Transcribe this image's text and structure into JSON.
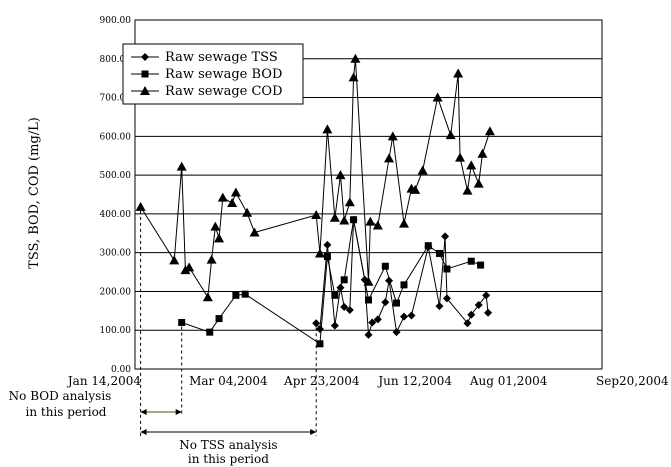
{
  "chart_data": {
    "type": "line",
    "ylabel": "TSS, BOD, COD (mg/L)",
    "ylim": [
      0,
      900
    ],
    "yticks": [
      "0.00",
      "100.00",
      "200.00",
      "300.00",
      "400.00",
      "500.00",
      "600.00",
      "700.00",
      "800.00",
      "900.00"
    ],
    "xlim": [
      "2004-01-14",
      "2004-09-20"
    ],
    "xticks": [
      {
        "date": "2004-01-14",
        "label": "Jan 14,2004"
      },
      {
        "date": "2004-03-04",
        "label": "Mar 04,2004"
      },
      {
        "date": "2004-04-23",
        "label": "Apr 23,2004"
      },
      {
        "date": "2004-06-12",
        "label": "Jun 12,2004"
      },
      {
        "date": "2004-08-01",
        "label": "Aug 01,2004"
      },
      {
        "date": "2004-09-20",
        "label": "Sep20,2004"
      }
    ],
    "grid": "horizontal",
    "legend_position": "top-left",
    "series": [
      {
        "name": "Raw sewage TSS",
        "marker": "diamond",
        "points": [
          [
            "2004-04-20",
            118
          ],
          [
            "2004-04-22",
            103
          ],
          [
            "2004-04-26",
            320
          ],
          [
            "2004-04-30",
            112
          ],
          [
            "2004-05-03",
            210
          ],
          [
            "2004-05-05",
            160
          ],
          [
            "2004-05-08",
            152
          ],
          [
            "2004-05-10",
            385
          ],
          [
            "2004-05-16",
            230
          ],
          [
            "2004-05-18",
            88
          ],
          [
            "2004-05-20",
            120
          ],
          [
            "2004-05-23",
            128
          ],
          [
            "2004-05-27",
            172
          ],
          [
            "2004-05-29",
            228
          ],
          [
            "2004-06-02",
            95
          ],
          [
            "2004-06-06",
            135
          ],
          [
            "2004-06-10",
            138
          ],
          [
            "2004-06-19",
            315
          ],
          [
            "2004-06-25",
            162
          ],
          [
            "2004-06-28",
            342
          ],
          [
            "2004-06-29",
            182
          ],
          [
            "2004-07-10",
            118
          ],
          [
            "2004-07-12",
            140
          ],
          [
            "2004-07-16",
            165
          ],
          [
            "2004-07-20",
            190
          ],
          [
            "2004-07-21",
            145
          ]
        ]
      },
      {
        "name": "Raw sewage BOD",
        "marker": "square",
        "points": [
          [
            "2004-02-08",
            120
          ],
          [
            "2004-02-23",
            95
          ],
          [
            "2004-02-28",
            130
          ],
          [
            "2004-03-08",
            190
          ],
          [
            "2004-03-13",
            193
          ],
          [
            "2004-04-22",
            65
          ],
          [
            "2004-04-26",
            290
          ],
          [
            "2004-04-30",
            190
          ],
          [
            "2004-05-05",
            230
          ],
          [
            "2004-05-10",
            385
          ],
          [
            "2004-05-18",
            178
          ],
          [
            "2004-05-27",
            265
          ],
          [
            "2004-06-02",
            170
          ],
          [
            "2004-06-06",
            217
          ],
          [
            "2004-06-19",
            318
          ],
          [
            "2004-06-25",
            298
          ],
          [
            "2004-06-29",
            258
          ],
          [
            "2004-07-12",
            278
          ],
          [
            "2004-07-17",
            268
          ]
        ]
      },
      {
        "name": "Raw sewage COD",
        "marker": "triangle",
        "points": [
          [
            "2004-01-17",
            418
          ],
          [
            "2004-02-04",
            280
          ],
          [
            "2004-02-08",
            522
          ],
          [
            "2004-02-10",
            255
          ],
          [
            "2004-02-12",
            262
          ],
          [
            "2004-02-22",
            185
          ],
          [
            "2004-02-24",
            282
          ],
          [
            "2004-02-26",
            367
          ],
          [
            "2004-02-28",
            337
          ],
          [
            "2004-03-01",
            442
          ],
          [
            "2004-03-06",
            428
          ],
          [
            "2004-03-08",
            455
          ],
          [
            "2004-03-14",
            403
          ],
          [
            "2004-03-18",
            352
          ],
          [
            "2004-04-20",
            397
          ],
          [
            "2004-04-22",
            298
          ],
          [
            "2004-04-26",
            618
          ],
          [
            "2004-04-30",
            390
          ],
          [
            "2004-05-03",
            500
          ],
          [
            "2004-05-05",
            383
          ],
          [
            "2004-05-08",
            430
          ],
          [
            "2004-05-10",
            752
          ],
          [
            "2004-05-11",
            800
          ],
          [
            "2004-05-18",
            225
          ],
          [
            "2004-05-19",
            380
          ],
          [
            "2004-05-23",
            370
          ],
          [
            "2004-05-29",
            543
          ],
          [
            "2004-05-31",
            600
          ],
          [
            "2004-06-06",
            375
          ],
          [
            "2004-06-10",
            465
          ],
          [
            "2004-06-12",
            462
          ],
          [
            "2004-06-16",
            512
          ],
          [
            "2004-06-24",
            700
          ],
          [
            "2004-07-01",
            603
          ],
          [
            "2004-07-05",
            762
          ],
          [
            "2004-07-06",
            545
          ],
          [
            "2004-07-10",
            460
          ],
          [
            "2004-07-12",
            525
          ],
          [
            "2004-07-16",
            478
          ],
          [
            "2004-07-18",
            555
          ],
          [
            "2004-07-22",
            613
          ]
        ]
      }
    ],
    "annotations": [
      {
        "lines": [
          "No BOD analysis",
          "in this period"
        ],
        "from": "2004-01-17",
        "to": "2004-02-08"
      },
      {
        "lines": [
          "No TSS analysis",
          "in this period"
        ],
        "from": "2004-01-17",
        "to": "2004-04-20"
      }
    ]
  }
}
